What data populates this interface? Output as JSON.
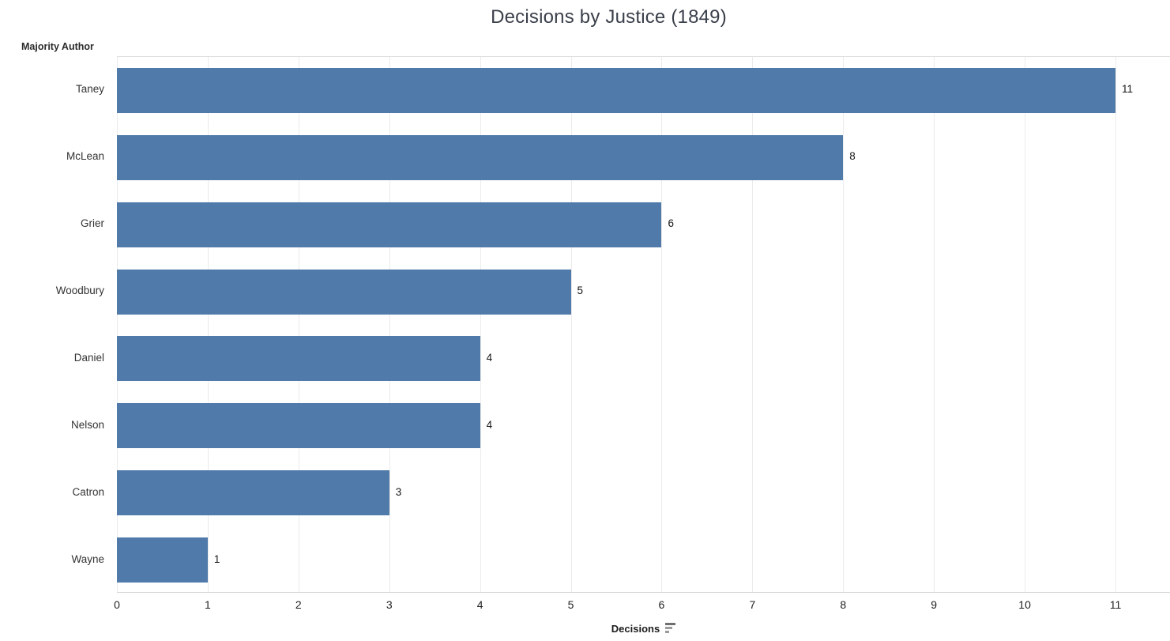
{
  "title": "Decisions by Justice (1849)",
  "row_axis_label": "Majority Author",
  "x_axis": {
    "label": "Decisions",
    "sort_icon": "sort-descending-icon",
    "ticks": [
      0,
      1,
      2,
      3,
      4,
      5,
      6,
      7,
      8,
      9,
      10,
      11
    ],
    "min": 0,
    "max": 11
  },
  "chart_data": {
    "type": "bar",
    "orientation": "horizontal",
    "title": "Decisions by Justice (1849)",
    "categories": [
      "Taney",
      "McLean",
      "Grier",
      "Woodbury",
      "Daniel",
      "Nelson",
      "Catron",
      "Wayne"
    ],
    "values": [
      11,
      8,
      6,
      5,
      4,
      4,
      3,
      1
    ],
    "data_labels": [
      "11",
      "8",
      "6",
      "5",
      "4",
      "4",
      "3",
      "1"
    ],
    "xlabel": "Decisions",
    "ylabel": "Majority Author",
    "xlim": [
      0,
      11.6
    ],
    "grid": true,
    "legend": "none",
    "sort": "descending"
  },
  "colors": {
    "bar": "#4f7aa9",
    "gridline": "#ebebeb",
    "axis_line": "#d6d6d6",
    "title_text": "#3a3f4a",
    "label_text": "#333333",
    "value_text": "#151515",
    "background": "#ffffff"
  }
}
